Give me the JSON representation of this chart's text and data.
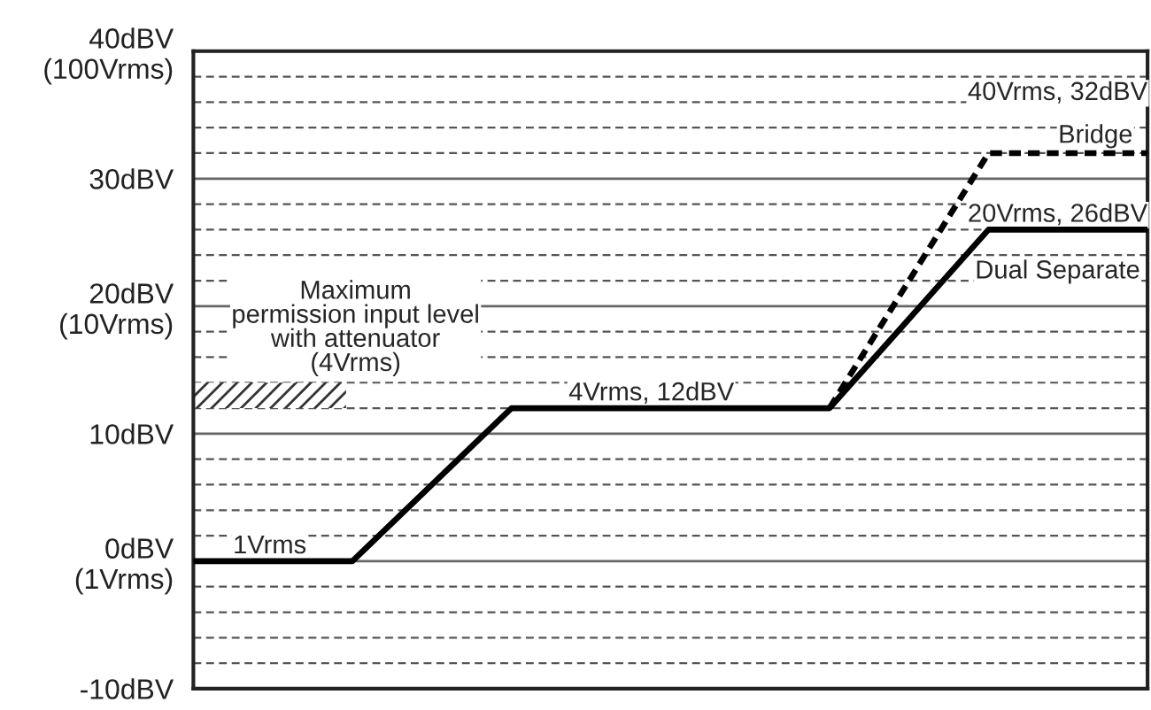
{
  "chart_data": {
    "type": "line",
    "categories": [
      null,
      null,
      null,
      null,
      null,
      null,
      null
    ],
    "series": [
      {
        "name": "Dual Separate",
        "color": "#000000",
        "line_style": "solid",
        "values": [
          0,
          0,
          12,
          12,
          12,
          26,
          26
        ]
      },
      {
        "name": "Bridge",
        "color": "#000000",
        "line_style": "dashed",
        "values": [
          null,
          null,
          null,
          null,
          12,
          32,
          32
        ]
      }
    ],
    "ylim": [
      -10,
      40
    ],
    "yticks": [
      {
        "value": -10,
        "label": "-10dBV"
      },
      {
        "value": -8,
        "label": null
      },
      {
        "value": -6,
        "label": null
      },
      {
        "value": -4,
        "label": null
      },
      {
        "value": -2,
        "label": null
      },
      {
        "value": 0,
        "label": "0dBV\n(1Vrms)"
      },
      {
        "value": 2,
        "label": null
      },
      {
        "value": 4,
        "label": null
      },
      {
        "value": 6,
        "label": null
      },
      {
        "value": 8,
        "label": null
      },
      {
        "value": 10,
        "label": "10dBV"
      },
      {
        "value": 12,
        "label": null
      },
      {
        "value": 14,
        "label": null
      },
      {
        "value": 16,
        "label": null
      },
      {
        "value": 18,
        "label": null
      },
      {
        "value": 20,
        "label": "20dBV\n(10Vrms)"
      },
      {
        "value": 22,
        "label": null
      },
      {
        "value": 24,
        "label": null
      },
      {
        "value": 26,
        "label": null
      },
      {
        "value": 28,
        "label": null
      },
      {
        "value": 30,
        "label": "30dBV"
      },
      {
        "value": 32,
        "label": null
      },
      {
        "value": 34,
        "label": null
      },
      {
        "value": 36,
        "label": null
      },
      {
        "value": 38,
        "label": null
      },
      {
        "value": 40,
        "label": "40dBV\n(100Vrms)"
      }
    ],
    "tick_labels": "y",
    "grid": "y",
    "legend": false,
    "annotations": [
      {
        "text": "1Vrms",
        "y": 0
      },
      {
        "text": "4Vrms, 12dBV",
        "y": 12
      },
      {
        "text": "20Vrms, 26dBV",
        "y": 26
      },
      "40Vrms, 32dBV",
      "Maximum\npermission input level\nwith attenuator\n(4Vrms)"
    ]
  }
}
